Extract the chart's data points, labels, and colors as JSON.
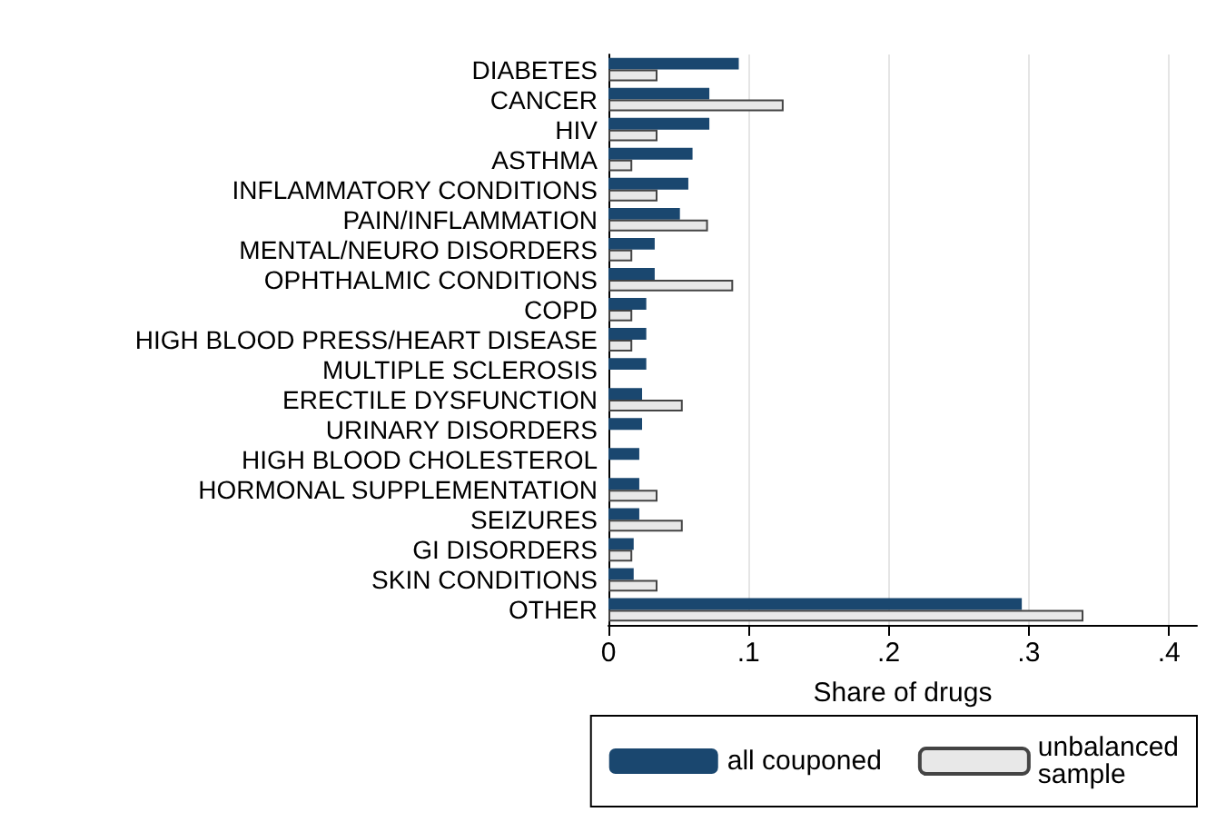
{
  "chart_data": {
    "type": "bar",
    "orientation": "horizontal",
    "xlabel": "Share of drugs",
    "categories": [
      "DIABETES",
      "CANCER",
      "HIV",
      "ASTHMA",
      "INFLAMMATORY CONDITIONS",
      "PAIN/INFLAMMATION",
      "MENTAL/NEURO DISORDERS",
      "OPHTHALMIC CONDITIONS",
      "COPD",
      "HIGH BLOOD PRESS/HEART DISEASE",
      "MULTIPLE SCLEROSIS",
      "ERECTILE DYSFUNCTION",
      "URINARY DISORDERS",
      "HIGH BLOOD CHOLESTEROL",
      "HORMONAL SUPPLEMENTATION",
      "SEIZURES",
      "GI DISORDERS",
      "SKIN CONDITIONS",
      "OTHER"
    ],
    "series": [
      {
        "name": "all couponed",
        "color": "#1a476f",
        "values": [
          0.093,
          0.072,
          0.072,
          0.06,
          0.057,
          0.051,
          0.033,
          0.033,
          0.027,
          0.027,
          0.027,
          0.024,
          0.024,
          0.022,
          0.022,
          0.022,
          0.018,
          0.018,
          0.295
        ]
      },
      {
        "name": "unbalanced\nsample",
        "color": "#e8e8e8",
        "values": [
          0.035,
          0.125,
          0.035,
          0.017,
          0.035,
          0.071,
          0.017,
          0.089,
          0.017,
          0.017,
          null,
          0.053,
          null,
          null,
          0.035,
          0.053,
          0.017,
          0.035,
          0.339
        ]
      }
    ],
    "xlim": [
      0,
      0.42
    ],
    "xticks": [
      0,
      {
        "value": 0.1,
        "label": ".1"
      },
      {
        "value": 0.2,
        "label": ".2"
      },
      {
        "value": 0.3,
        "label": ".3"
      },
      {
        "value": 0.4,
        "label": ".4"
      }
    ],
    "grid": "x",
    "legend": "bottom"
  }
}
